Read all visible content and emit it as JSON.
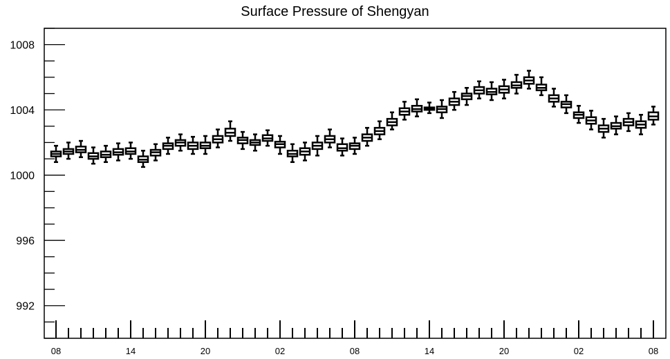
{
  "chart_data": {
    "type": "box",
    "title": "Surface Pressure of Shengyan",
    "xlabel": "",
    "ylabel": "",
    "ylim": [
      990,
      1009
    ],
    "yticks": [
      "992",
      "996",
      "1000",
      "1004",
      "1008"
    ],
    "xticks": [
      "08",
      "14",
      "20",
      "02",
      "08",
      "14",
      "20",
      "02",
      "08"
    ],
    "grid": false,
    "legend": "none",
    "box_fill": "#ffffff",
    "box_stroke": "#000000",
    "boxes": [
      {
        "x": 0,
        "min": 1000.8,
        "q1": 1001.15,
        "median": 1001.3,
        "q3": 1001.45,
        "max": 1001.8
      },
      {
        "x": 1,
        "min": 1001.0,
        "q1": 1001.3,
        "median": 1001.45,
        "q3": 1001.6,
        "max": 1002.0
      },
      {
        "x": 2,
        "min": 1001.1,
        "q1": 1001.4,
        "median": 1001.55,
        "q3": 1001.75,
        "max": 1002.1
      },
      {
        "x": 3,
        "min": 1000.7,
        "q1": 1001.0,
        "median": 1001.15,
        "q3": 1001.35,
        "max": 1001.7
      },
      {
        "x": 4,
        "min": 1000.8,
        "q1": 1001.1,
        "median": 1001.25,
        "q3": 1001.45,
        "max": 1001.8
      },
      {
        "x": 5,
        "min": 1000.9,
        "q1": 1001.25,
        "median": 1001.4,
        "q3": 1001.6,
        "max": 1001.95
      },
      {
        "x": 6,
        "min": 1001.0,
        "q1": 1001.3,
        "median": 1001.45,
        "q3": 1001.65,
        "max": 1002.0
      },
      {
        "x": 7,
        "min": 1000.5,
        "q1": 1000.8,
        "median": 1000.95,
        "q3": 1001.15,
        "max": 1001.5
      },
      {
        "x": 8,
        "min": 1000.9,
        "q1": 1001.2,
        "median": 1001.4,
        "q3": 1001.55,
        "max": 1001.9
      },
      {
        "x": 9,
        "min": 1001.3,
        "q1": 1001.6,
        "median": 1001.8,
        "q3": 1001.95,
        "max": 1002.3
      },
      {
        "x": 10,
        "min": 1001.5,
        "q1": 1001.8,
        "median": 1002.0,
        "q3": 1002.15,
        "max": 1002.5
      },
      {
        "x": 11,
        "min": 1001.3,
        "q1": 1001.6,
        "median": 1001.8,
        "q3": 1002.0,
        "max": 1002.35
      },
      {
        "x": 12,
        "min": 1001.3,
        "q1": 1001.65,
        "median": 1001.8,
        "q3": 1002.0,
        "max": 1002.4
      },
      {
        "x": 13,
        "min": 1001.7,
        "q1": 1002.0,
        "median": 1002.2,
        "q3": 1002.4,
        "max": 1002.8
      },
      {
        "x": 14,
        "min": 1002.1,
        "q1": 1002.4,
        "median": 1002.6,
        "q3": 1002.85,
        "max": 1003.3
      },
      {
        "x": 15,
        "min": 1001.6,
        "q1": 1001.95,
        "median": 1002.15,
        "q3": 1002.3,
        "max": 1002.65
      },
      {
        "x": 16,
        "min": 1001.5,
        "q1": 1001.85,
        "median": 1002.0,
        "q3": 1002.15,
        "max": 1002.5
      },
      {
        "x": 17,
        "min": 1001.8,
        "q1": 1002.1,
        "median": 1002.25,
        "q3": 1002.45,
        "max": 1002.75
      },
      {
        "x": 18,
        "min": 1001.3,
        "q1": 1001.7,
        "median": 1001.9,
        "q3": 1002.05,
        "max": 1002.4
      },
      {
        "x": 19,
        "min": 1000.8,
        "q1": 1001.15,
        "median": 1001.3,
        "q3": 1001.5,
        "max": 1001.9
      },
      {
        "x": 20,
        "min": 1000.9,
        "q1": 1001.25,
        "median": 1001.45,
        "q3": 1001.65,
        "max": 1002.0
      },
      {
        "x": 21,
        "min": 1001.2,
        "q1": 1001.6,
        "median": 1001.8,
        "q3": 1002.0,
        "max": 1002.4
      },
      {
        "x": 22,
        "min": 1001.7,
        "q1": 1002.0,
        "median": 1002.2,
        "q3": 1002.4,
        "max": 1002.8
      },
      {
        "x": 23,
        "min": 1001.2,
        "q1": 1001.5,
        "median": 1001.65,
        "q3": 1001.9,
        "max": 1002.25
      },
      {
        "x": 24,
        "min": 1001.3,
        "q1": 1001.6,
        "median": 1001.8,
        "q3": 1001.95,
        "max": 1002.3
      },
      {
        "x": 25,
        "min": 1001.8,
        "q1": 1002.1,
        "median": 1002.3,
        "q3": 1002.5,
        "max": 1002.9
      },
      {
        "x": 26,
        "min": 1002.2,
        "q1": 1002.5,
        "median": 1002.7,
        "q3": 1002.9,
        "max": 1003.3
      },
      {
        "x": 27,
        "min": 1002.8,
        "q1": 1003.05,
        "median": 1003.25,
        "q3": 1003.45,
        "max": 1003.85
      },
      {
        "x": 28,
        "min": 1003.4,
        "q1": 1003.7,
        "median": 1003.9,
        "q3": 1004.1,
        "max": 1004.5
      },
      {
        "x": 29,
        "min": 1003.6,
        "q1": 1003.9,
        "median": 1004.05,
        "q3": 1004.25,
        "max": 1004.65
      },
      {
        "x": 30,
        "min": 1003.8,
        "q1": 1004.0,
        "median": 1004.1,
        "q3": 1004.15,
        "max": 1004.45
      },
      {
        "x": 31,
        "min": 1003.5,
        "q1": 1003.85,
        "median": 1004.05,
        "q3": 1004.2,
        "max": 1004.6
      },
      {
        "x": 32,
        "min": 1004.0,
        "q1": 1004.3,
        "median": 1004.5,
        "q3": 1004.7,
        "max": 1005.1
      },
      {
        "x": 33,
        "min": 1004.3,
        "q1": 1004.65,
        "median": 1004.85,
        "q3": 1005.0,
        "max": 1005.35
      },
      {
        "x": 34,
        "min": 1004.7,
        "q1": 1005.0,
        "median": 1005.2,
        "q3": 1005.4,
        "max": 1005.75
      },
      {
        "x": 35,
        "min": 1004.6,
        "q1": 1004.95,
        "median": 1005.1,
        "q3": 1005.3,
        "max": 1005.7
      },
      {
        "x": 36,
        "min": 1004.7,
        "q1": 1005.05,
        "median": 1005.25,
        "q3": 1005.45,
        "max": 1005.85
      },
      {
        "x": 37,
        "min": 1005.0,
        "q1": 1005.35,
        "median": 1005.5,
        "q3": 1005.7,
        "max": 1006.15
      },
      {
        "x": 38,
        "min": 1005.3,
        "q1": 1005.6,
        "median": 1005.8,
        "q3": 1006.0,
        "max": 1006.4
      },
      {
        "x": 39,
        "min": 1004.9,
        "q1": 1005.2,
        "median": 1005.35,
        "q3": 1005.55,
        "max": 1006.0
      },
      {
        "x": 40,
        "min": 1004.2,
        "q1": 1004.5,
        "median": 1004.7,
        "q3": 1004.9,
        "max": 1005.3
      },
      {
        "x": 41,
        "min": 1003.8,
        "q1": 1004.15,
        "median": 1004.35,
        "q3": 1004.5,
        "max": 1004.9
      },
      {
        "x": 42,
        "min": 1003.2,
        "q1": 1003.5,
        "median": 1003.7,
        "q3": 1003.85,
        "max": 1004.25
      },
      {
        "x": 43,
        "min": 1002.8,
        "q1": 1003.15,
        "median": 1003.35,
        "q3": 1003.55,
        "max": 1003.95
      },
      {
        "x": 44,
        "min": 1002.3,
        "q1": 1002.65,
        "median": 1002.85,
        "q3": 1003.05,
        "max": 1003.45
      },
      {
        "x": 45,
        "min": 1002.5,
        "q1": 1002.85,
        "median": 1003.0,
        "q3": 1003.2,
        "max": 1003.6
      },
      {
        "x": 46,
        "min": 1002.7,
        "q1": 1003.05,
        "median": 1003.25,
        "q3": 1003.45,
        "max": 1003.8
      },
      {
        "x": 47,
        "min": 1002.5,
        "q1": 1002.9,
        "median": 1003.1,
        "q3": 1003.3,
        "max": 1003.7
      },
      {
        "x": 48,
        "min": 1003.1,
        "q1": 1003.4,
        "median": 1003.6,
        "q3": 1003.85,
        "max": 1004.2
      }
    ]
  }
}
